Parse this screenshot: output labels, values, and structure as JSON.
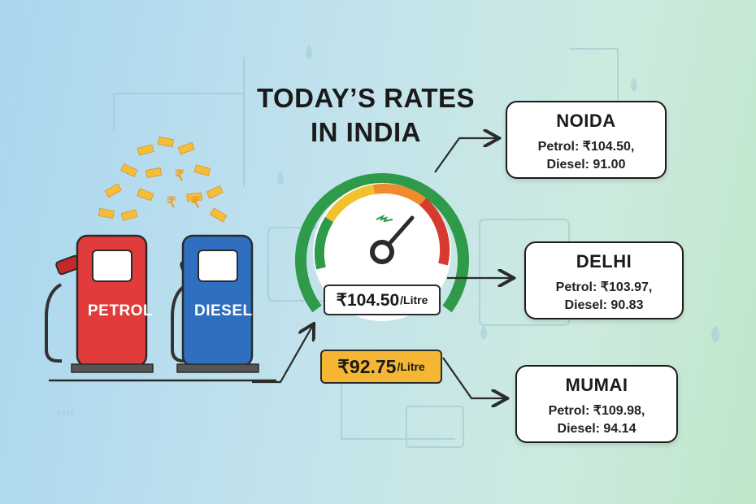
{
  "title": {
    "line1": "TODAY’S RATES",
    "line2": "IN INDIA"
  },
  "pumps": [
    {
      "label": "PETROL",
      "color": "#e23b3b"
    },
    {
      "label": "DIESEL",
      "color": "#2f6fc0"
    }
  ],
  "gauge": {
    "main_price": "₹104.50",
    "main_unit": "/Litre",
    "secondary_price": "₹92.75",
    "secondary_unit": "/Litre",
    "arc_colors": [
      "#2e9a4a",
      "#f2c12e",
      "#f08a2a",
      "#d93a2f"
    ]
  },
  "cities": [
    {
      "name": "NOIDA",
      "petrol": "Petrol: ₹104.50,",
      "diesel": "Diesel: 91.00"
    },
    {
      "name": "DELHI",
      "petrol": "Petrol: ₹103.97,",
      "diesel": "Diesel: 90.83"
    },
    {
      "name": "MUMAI",
      "petrol": "Petrol: ₹109.98,",
      "diesel": "Diesel: 94.14"
    }
  ],
  "colors": {
    "accent_orange": "#f5b733",
    "dark": "#1c1c1c"
  }
}
